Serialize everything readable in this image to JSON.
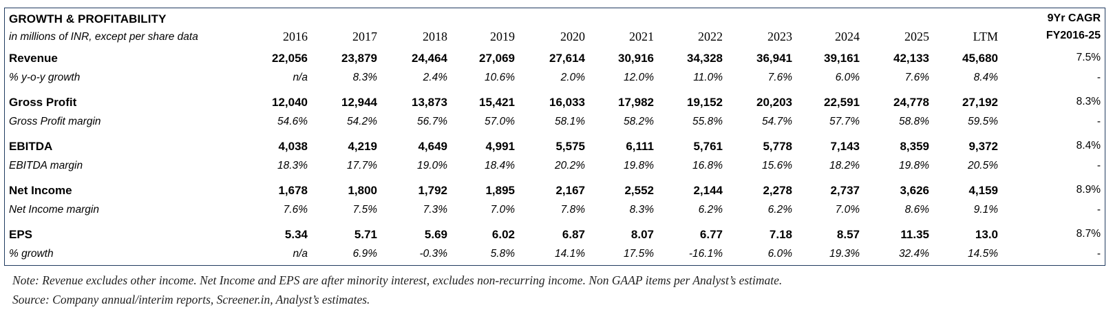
{
  "table": {
    "title": "GROWTH & PROFITABILITY",
    "subtitle": "in millions of INR, except per share data",
    "cagr_header_line1": "9Yr CAGR",
    "cagr_header_line2": "FY2016-25",
    "years": [
      "2016",
      "2017",
      "2018",
      "2019",
      "2020",
      "2021",
      "2022",
      "2023",
      "2024",
      "2025",
      "LTM"
    ],
    "rows": [
      {
        "kind": "main",
        "label": "Revenue",
        "values": [
          "22,056",
          "23,879",
          "24,464",
          "27,069",
          "27,614",
          "30,916",
          "34,328",
          "36,941",
          "39,161",
          "42,133",
          "45,680"
        ],
        "cagr": "7.5%"
      },
      {
        "kind": "sub",
        "label": "% y-o-y growth",
        "values": [
          "n/a",
          "8.3%",
          "2.4%",
          "10.6%",
          "2.0%",
          "12.0%",
          "11.0%",
          "7.6%",
          "6.0%",
          "7.6%",
          "8.4%"
        ],
        "cagr": "-"
      },
      {
        "kind": "main",
        "label": "Gross Profit",
        "values": [
          "12,040",
          "12,944",
          "13,873",
          "15,421",
          "16,033",
          "17,982",
          "19,152",
          "20,203",
          "22,591",
          "24,778",
          "27,192"
        ],
        "cagr": "8.3%"
      },
      {
        "kind": "sub",
        "label": "Gross Profit margin",
        "values": [
          "54.6%",
          "54.2%",
          "56.7%",
          "57.0%",
          "58.1%",
          "58.2%",
          "55.8%",
          "54.7%",
          "57.7%",
          "58.8%",
          "59.5%"
        ],
        "cagr": "-"
      },
      {
        "kind": "main",
        "label": "EBITDA",
        "values": [
          "4,038",
          "4,219",
          "4,649",
          "4,991",
          "5,575",
          "6,111",
          "5,761",
          "5,778",
          "7,143",
          "8,359",
          "9,372"
        ],
        "cagr": "8.4%"
      },
      {
        "kind": "sub",
        "label": "EBITDA margin",
        "values": [
          "18.3%",
          "17.7%",
          "19.0%",
          "18.4%",
          "20.2%",
          "19.8%",
          "16.8%",
          "15.6%",
          "18.2%",
          "19.8%",
          "20.5%"
        ],
        "cagr": "-"
      },
      {
        "kind": "main",
        "label": "Net Income",
        "values": [
          "1,678",
          "1,800",
          "1,792",
          "1,895",
          "2,167",
          "2,552",
          "2,144",
          "2,278",
          "2,737",
          "3,626",
          "4,159"
        ],
        "cagr": "8.9%"
      },
      {
        "kind": "sub",
        "label": "Net Income margin",
        "values": [
          "7.6%",
          "7.5%",
          "7.3%",
          "7.0%",
          "7.8%",
          "8.3%",
          "6.2%",
          "6.2%",
          "7.0%",
          "8.6%",
          "9.1%"
        ],
        "cagr": "-"
      },
      {
        "kind": "main",
        "label": "EPS",
        "values": [
          "5.34",
          "5.71",
          "5.69",
          "6.02",
          "6.87",
          "8.07",
          "6.77",
          "7.18",
          "8.57",
          "11.35",
          "13.0"
        ],
        "cagr": "8.7%"
      },
      {
        "kind": "sub",
        "label": "% growth",
        "values": [
          "n/a",
          "6.9%",
          "-0.3%",
          "5.8%",
          "14.1%",
          "17.5%",
          "-16.1%",
          "6.0%",
          "19.3%",
          "32.4%",
          "14.5%"
        ],
        "cagr": "-"
      }
    ]
  },
  "notes": {
    "note": "Note: Revenue excludes other income. Net Income and EPS are after minority interest, excludes non-recurring income. Non GAAP items per Analyst’s estimate.",
    "source": "Source: Company annual/interim reports, Screener.in, Analyst’s estimates."
  },
  "colors": {
    "border": "#1f3a5f"
  }
}
